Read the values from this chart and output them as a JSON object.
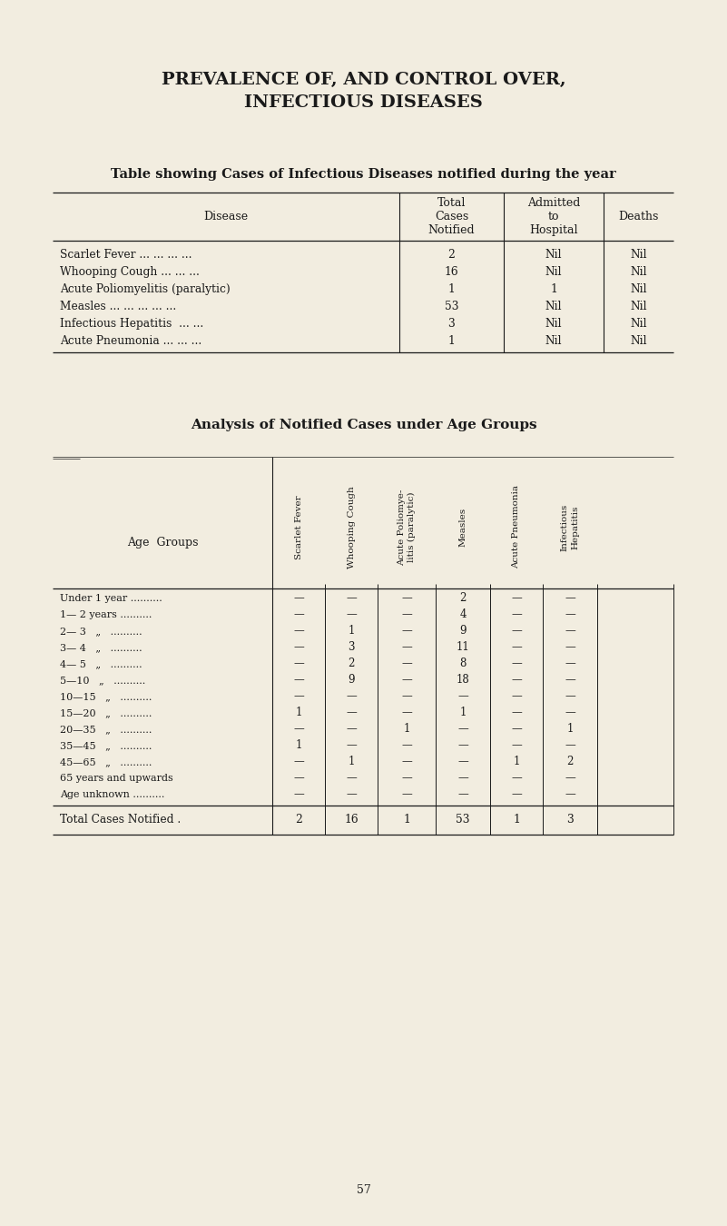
{
  "bg_color": "#f2ede0",
  "text_color": "#1a1a1a",
  "title_line1": "PREVALENCE OF, AND CONTROL OVER,",
  "title_line2": "INFECTIOUS DISEASES",
  "table1_title": "Table showing Cases of Infectious Diseases notified during the year",
  "table1_headers_col0": "Disease",
  "table1_headers_col1": "Total\nCases\nNotified",
  "table1_headers_col2": "Admitted\nto\nHospital",
  "table1_headers_col3": "Deaths",
  "table1_rows": [
    [
      "Scarlet Fever ... ... ... ...",
      "2",
      "Nil",
      "Nil"
    ],
    [
      "Whooping Cough ... ... ...",
      "16",
      "Nil",
      "Nil"
    ],
    [
      "Acute Poliomyelitis (paralytic)",
      "1",
      "1",
      "Nil"
    ],
    [
      "Measles ... ... ... ... ...",
      "53",
      "Nil",
      "Nil"
    ],
    [
      "Infectious Hepatitis  ... ...",
      "3",
      "Nil",
      "Nil"
    ],
    [
      "Acute Pneumonia ... ... ...",
      "1",
      "Nil",
      "Nil"
    ]
  ],
  "table2_title": "Analysis of Notified Cases under Age Groups",
  "table2_rot_headers": [
    "Scarlet Fever",
    "Whooping Cough",
    "Acute Poliomye-\nlitis (paralytic)",
    "Measles",
    "Acute Pneumonia",
    "Infectious\nHepatitis"
  ],
  "table2_rows": [
    [
      "Under 1 year ..........",
      "—",
      "—",
      "—",
      "2",
      "—",
      "—"
    ],
    [
      "1— 2 years ..........",
      "—",
      "—",
      "—",
      "4",
      "—",
      "—"
    ],
    [
      "2— 3   „   ..........",
      "—",
      "1",
      "—",
      "9",
      "—",
      "—"
    ],
    [
      "3— 4   „   ..........",
      "—",
      "3",
      "—",
      "11",
      "—",
      "—"
    ],
    [
      "4— 5   „   ..........",
      "—",
      "2",
      "—",
      "8",
      "—",
      "—"
    ],
    [
      "5—10   „   ..........",
      "—",
      "9",
      "—",
      "18",
      "—",
      "—"
    ],
    [
      "10—15   „   ..........",
      "—",
      "—",
      "—",
      "—",
      "—",
      "—"
    ],
    [
      "15—20   „   ..........",
      "1",
      "—",
      "—",
      "1",
      "—",
      "—"
    ],
    [
      "20—35   „   ..........",
      "—",
      "—",
      "1",
      "—",
      "—",
      "1"
    ],
    [
      "35—45   „   ..........",
      "1",
      "—",
      "—",
      "—",
      "—",
      "—"
    ],
    [
      "45—65   „   ..........",
      "—",
      "1",
      "—",
      "—",
      "1",
      "2"
    ],
    [
      "65 years and upwards",
      "—",
      "—",
      "—",
      "—",
      "—",
      "—"
    ],
    [
      "Age unknown ..........",
      "—",
      "—",
      "—",
      "—",
      "—",
      "—"
    ]
  ],
  "table2_totals": [
    "Total Cases Notified .",
    "2",
    "16",
    "1",
    "53",
    "1",
    "3"
  ],
  "page_number": "57"
}
